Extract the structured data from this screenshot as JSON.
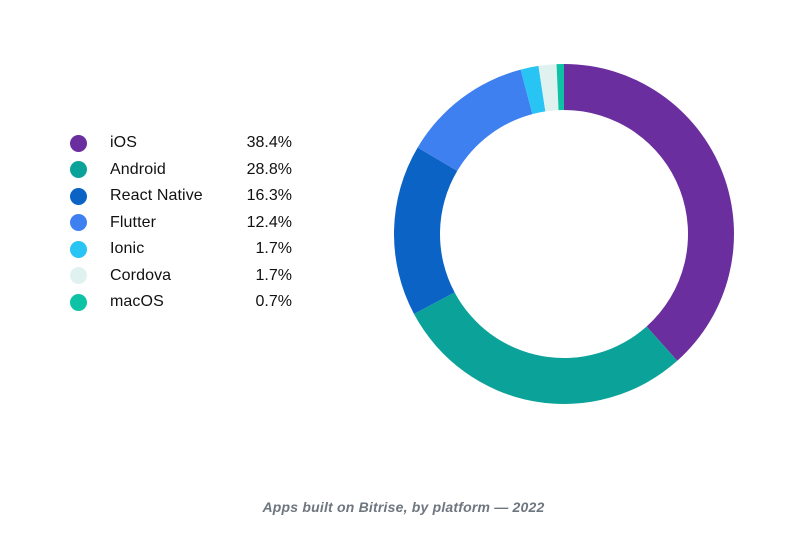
{
  "page": {
    "background_color": "#ffffff",
    "text_color": "#111111",
    "caption_color": "#6e7680"
  },
  "legend": {
    "items": [
      {
        "label": "iOS",
        "value": "38.4%",
        "color": "#6b2e9f"
      },
      {
        "label": "Android",
        "value": "28.8%",
        "color": "#0ba399"
      },
      {
        "label": "React Native",
        "value": "16.3%",
        "color": "#0b63c5"
      },
      {
        "label": "Flutter",
        "value": "12.4%",
        "color": "#3f80f1"
      },
      {
        "label": "Ionic",
        "value": "1.7%",
        "color": "#27c4f4"
      },
      {
        "label": "Cordova",
        "value": "1.7%",
        "color": "#dff2f0"
      },
      {
        "label": "macOS",
        "value": "0.7%",
        "color": "#0ec2a6"
      }
    ]
  },
  "caption": {
    "text": "Apps built on Bitrise, by platform — 2022"
  },
  "chart_data": {
    "type": "pie",
    "subtype": "donut",
    "title": "Apps built on Bitrise, by platform — 2022",
    "categories": [
      "iOS",
      "Android",
      "React Native",
      "Flutter",
      "Ionic",
      "Cordova",
      "macOS"
    ],
    "values": [
      38.4,
      28.8,
      16.3,
      12.4,
      1.7,
      1.7,
      0.7
    ],
    "unit": "%",
    "colors": [
      "#6b2e9f",
      "#0ba399",
      "#0b63c5",
      "#3f80f1",
      "#27c4f4",
      "#dff2f0",
      "#0ec2a6"
    ],
    "start_angle_deg": 0,
    "direction": "clockwise",
    "donut_hole_ratio": 0.73,
    "legend_position": "left",
    "data_labels": "legend-only"
  }
}
